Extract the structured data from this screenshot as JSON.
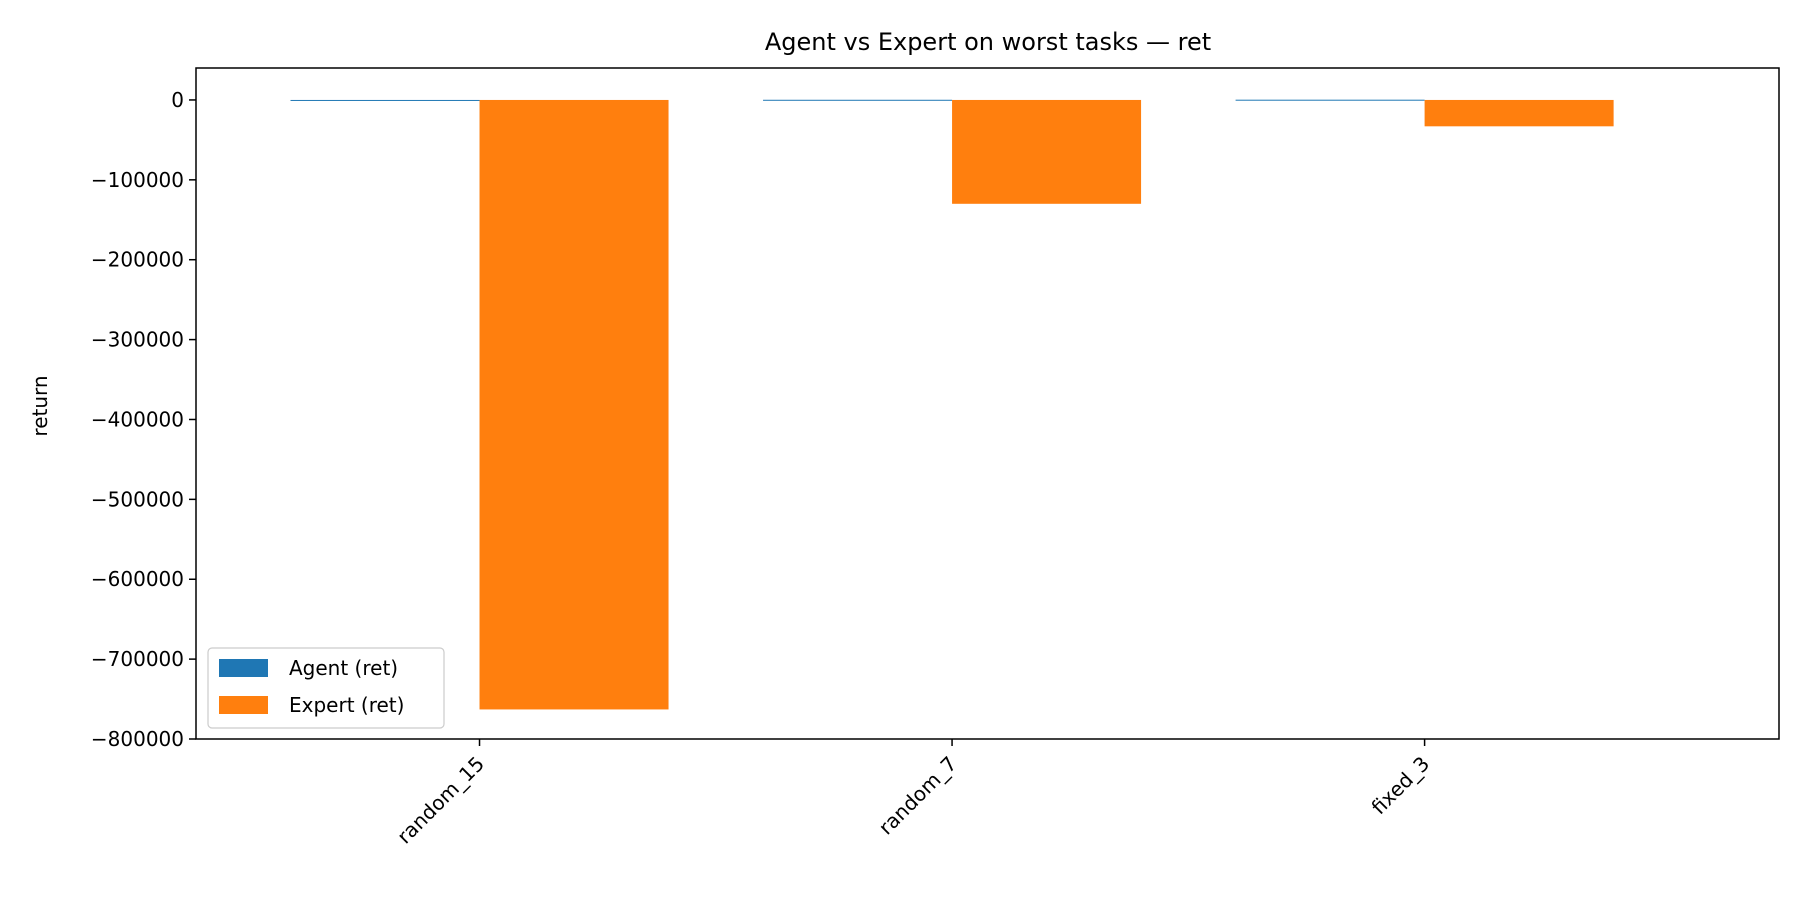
{
  "chart_data": {
    "type": "bar",
    "title": "Agent vs Expert on worst tasks — ret",
    "xlabel": "",
    "ylabel": "return",
    "categories": [
      "random_15",
      "random_7",
      "fixed_3"
    ],
    "series": [
      {
        "name": "Agent (ret)",
        "color": "#1f77b4",
        "values": [
          -450,
          220,
          320
        ]
      },
      {
        "name": "Expert (ret)",
        "color": "#ff7f0e",
        "values": [
          -763000,
          -130000,
          -33000
        ]
      }
    ],
    "ylim": [
      -800000,
      40000
    ],
    "yticks": [
      0,
      -100000,
      -200000,
      -300000,
      -400000,
      -500000,
      -600000,
      -700000,
      -800000
    ],
    "ytick_labels": [
      "0",
      "−100000",
      "−200000",
      "−300000",
      "−400000",
      "−500000",
      "−600000",
      "−700000",
      "−800000"
    ],
    "grid": false,
    "legend_position": "lower-left"
  }
}
